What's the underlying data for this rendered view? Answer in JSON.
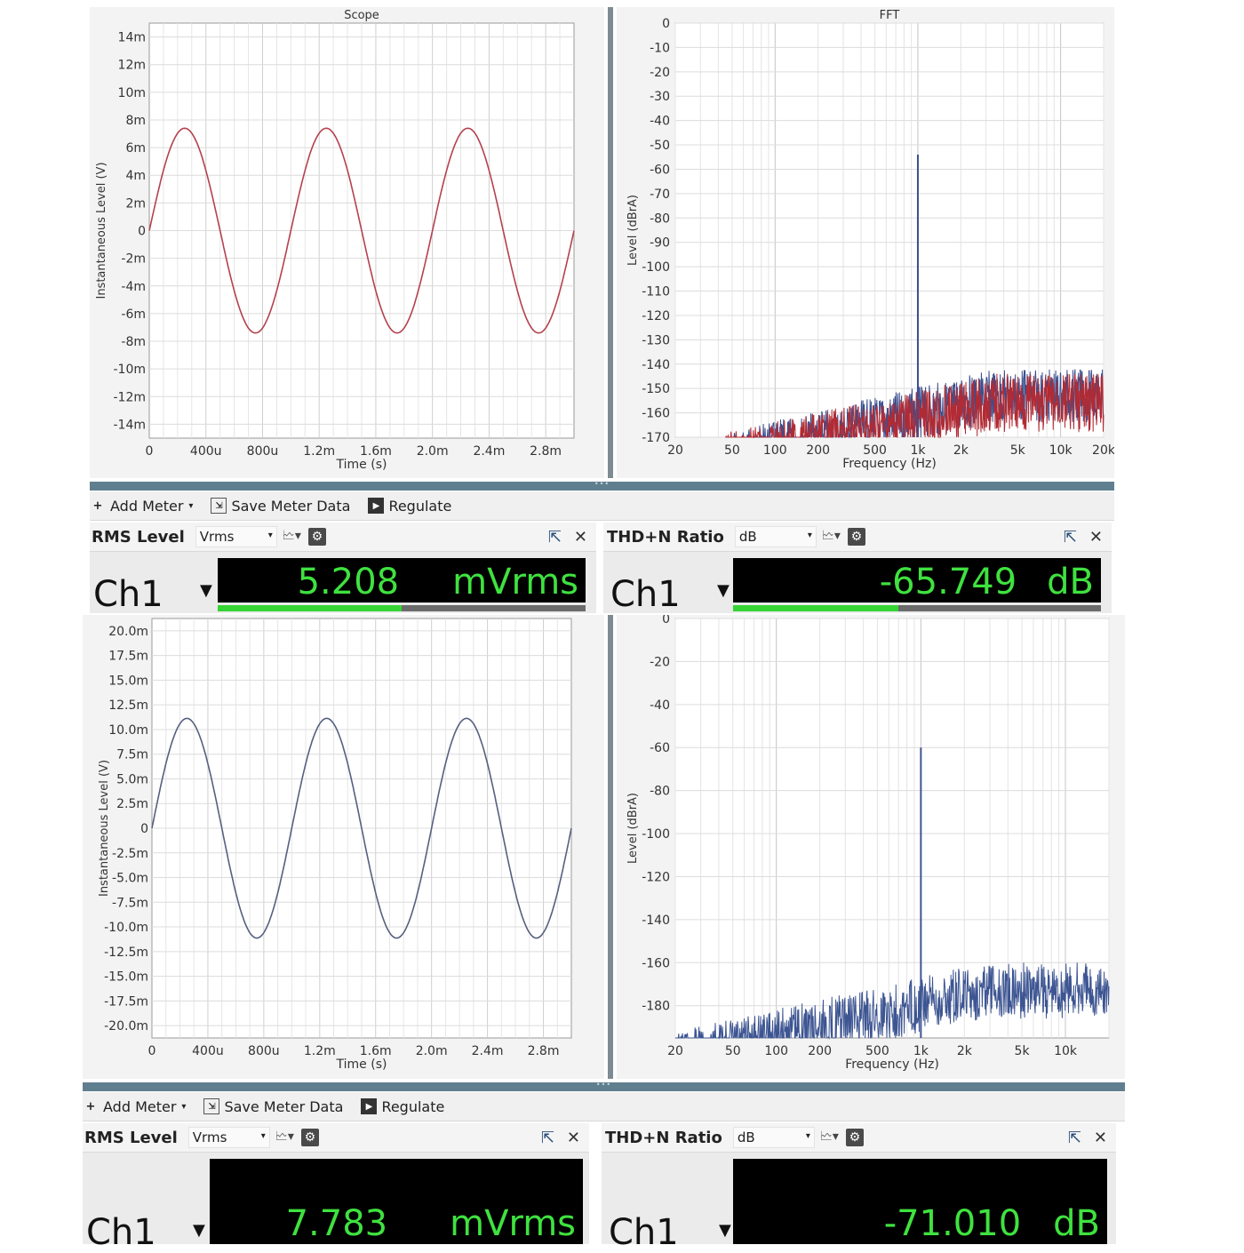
{
  "top": {
    "scope": {
      "title": "Scope",
      "ylabel": "Instantaneous Level (V)",
      "xlabel": "Time (s)",
      "yticks": [
        "14m",
        "12m",
        "10m",
        "8m",
        "6m",
        "4m",
        "2m",
        "0",
        "-2m",
        "-4m",
        "-6m",
        "-8m",
        "-10m",
        "-12m",
        "-14m"
      ],
      "xticks": [
        "0",
        "400u",
        "800u",
        "1.2m",
        "1.6m",
        "2.0m",
        "2.4m",
        "2.8m"
      ],
      "trace_color": "#b5414f"
    },
    "fft": {
      "title": "FFT",
      "ylabel": "Level (dBrA)",
      "xlabel": "Frequency (Hz)",
      "yticks": [
        "0",
        "-10",
        "-20",
        "-30",
        "-40",
        "-50",
        "-60",
        "-70",
        "-80",
        "-90",
        "-100",
        "-110",
        "-120",
        "-130",
        "-140",
        "-150",
        "-160",
        "-170"
      ],
      "xticks": [
        "20",
        "50",
        "100",
        "200",
        "500",
        "1k",
        "2k",
        "5k",
        "10k",
        "20k"
      ],
      "trace_color": "#b22a33",
      "alt_color": "#3b4f8f"
    },
    "toolbar": {
      "add_meter": "Add Meter",
      "save": "Save Meter Data",
      "regulate": "Regulate"
    },
    "rms": {
      "title": "RMS Level",
      "unit": "Vrms",
      "channel": "Ch1",
      "value": "5.208",
      "value_unit": "mVrms",
      "bar_fraction": 0.5
    },
    "thd": {
      "title": "THD+N Ratio",
      "unit": "dB",
      "channel": "Ch1",
      "value": "-65.749",
      "value_unit": "dB",
      "bar_fraction": 0.45
    }
  },
  "bottom": {
    "scope": {
      "ylabel": "Instantaneous Level (V)",
      "xlabel": "Time (s)",
      "yticks": [
        "20.0m",
        "17.5m",
        "15.0m",
        "12.5m",
        "10.0m",
        "7.5m",
        "5.0m",
        "2.5m",
        "0",
        "-2.5m",
        "-5.0m",
        "-7.5m",
        "-10.0m",
        "-12.5m",
        "-15.0m",
        "-17.5m",
        "-20.0m"
      ],
      "xticks": [
        "0",
        "400u",
        "800u",
        "1.2m",
        "1.6m",
        "2.0m",
        "2.4m",
        "2.8m"
      ],
      "trace_color": "#55607e"
    },
    "fft": {
      "ylabel": "Level (dBrA)",
      "xlabel": "Frequency (Hz)",
      "yticks": [
        "0",
        "-20",
        "-40",
        "-60",
        "-80",
        "-100",
        "-120",
        "-140",
        "-160",
        "-180"
      ],
      "xticks": [
        "20",
        "50",
        "100",
        "200",
        "500",
        "1k",
        "2k",
        "5k",
        "10k"
      ],
      "trace_color": "#3d5592"
    },
    "toolbar": {
      "add_meter": "Add Meter",
      "save": "Save Meter Data",
      "regulate": "Regulate"
    },
    "rms": {
      "title": "RMS Level",
      "unit": "Vrms",
      "channel": "Ch1",
      "value": "7.783",
      "value_unit": "mVrms"
    },
    "thd": {
      "title": "THD+N Ratio",
      "unit": "dB",
      "channel": "Ch1",
      "value": "-71.010",
      "value_unit": "dB"
    }
  },
  "chart_data": [
    {
      "type": "line",
      "title": "Scope",
      "xlabel": "Time (s)",
      "ylabel": "Instantaneous Level (V)",
      "xlim": [
        0,
        0.003
      ],
      "ylim": [
        -0.015,
        0.015
      ],
      "series": [
        {
          "amplitude": 0.0074,
          "frequency_hz": 1000,
          "phase": 0
        }
      ]
    },
    {
      "type": "line",
      "title": "FFT",
      "xlabel": "Frequency (Hz)",
      "ylabel": "Level (dBrA)",
      "xscale": "log",
      "xlim": [
        20,
        20000
      ],
      "ylim": [
        -170,
        0
      ],
      "peaks": [
        {
          "x": 1000,
          "y": -54
        }
      ],
      "noise_floor": [
        -165,
        -145
      ]
    },
    {
      "type": "line",
      "xlabel": "Time (s)",
      "ylabel": "Instantaneous Level (V)",
      "xlim": [
        0,
        0.003
      ],
      "ylim": [
        -0.021,
        0.021
      ],
      "series": [
        {
          "amplitude": 0.011,
          "frequency_hz": 1000,
          "phase": 0
        }
      ]
    },
    {
      "type": "line",
      "xlabel": "Frequency (Hz)",
      "ylabel": "Level (dBrA)",
      "xscale": "log",
      "xlim": [
        20,
        20000
      ],
      "ylim": [
        -195,
        0
      ],
      "peaks": [
        {
          "x": 1000,
          "y": -60
        }
      ],
      "noise_floor": [
        -185,
        -160
      ]
    }
  ]
}
